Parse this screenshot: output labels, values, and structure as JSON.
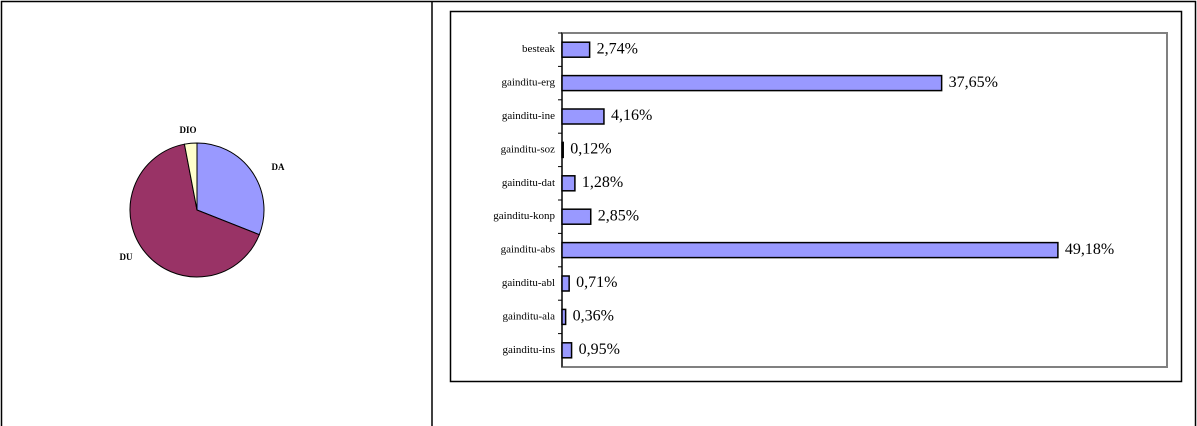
{
  "chart_data": [
    {
      "type": "pie",
      "labels": [
        "DA",
        "DU",
        "DIO"
      ],
      "values": [
        31,
        66,
        3
      ],
      "colors": [
        "#9999ff",
        "#993366",
        "#ffffcc"
      ]
    },
    {
      "type": "bar",
      "orientation": "horizontal",
      "categories": [
        "besteak",
        "gainditu-erg",
        "gainditu-ine",
        "gainditu-soz",
        "gainditu-dat",
        "gainditu-konp",
        "gainditu-abs",
        "gainditu-abl",
        "gainditu-ala",
        "gainditu-ins"
      ],
      "values": [
        2.74,
        37.65,
        4.16,
        0.12,
        1.28,
        2.85,
        49.18,
        0.71,
        0.36,
        0.95
      ],
      "value_labels": [
        "2,74%",
        "37,65%",
        "4,16%",
        "0,12%",
        "1,28%",
        "2,85%",
        "49,18%",
        "0,71%",
        "0,36%",
        "0,95%"
      ],
      "color": "#9999ff",
      "xlim": [
        0,
        60
      ]
    }
  ]
}
